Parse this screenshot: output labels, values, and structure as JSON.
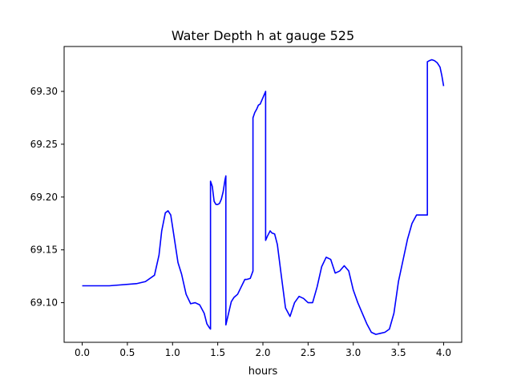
{
  "chart_data": {
    "type": "line",
    "title": "Water Depth h at gauge 525",
    "xlabel": "hours",
    "ylabel": "",
    "xlim": [
      -0.2,
      4.2
    ],
    "ylim": [
      69.0625,
      69.3425
    ],
    "xticks": [
      0.0,
      0.5,
      1.0,
      1.5,
      2.0,
      2.5,
      3.0,
      3.5,
      4.0
    ],
    "xtick_labels": [
      "0.0",
      "0.5",
      "1.0",
      "1.5",
      "2.0",
      "2.5",
      "3.0",
      "3.5",
      "4.0"
    ],
    "yticks": [
      69.1,
      69.15,
      69.2,
      69.25,
      69.3
    ],
    "ytick_labels": [
      "69.10",
      "69.15",
      "69.20",
      "69.25",
      "69.30"
    ],
    "grid": false,
    "series": [
      {
        "color": "#0000ff",
        "x": [
          0.0,
          0.3,
          0.6,
          0.7,
          0.8,
          0.85,
          0.88,
          0.92,
          0.95,
          0.98,
          1.0,
          1.03,
          1.06,
          1.1,
          1.15,
          1.2,
          1.25,
          1.3,
          1.35,
          1.38,
          1.41,
          1.42,
          1.42,
          1.44,
          1.46,
          1.48,
          1.5,
          1.52,
          1.54,
          1.56,
          1.58,
          1.59,
          1.59,
          1.62,
          1.65,
          1.68,
          1.72,
          1.76,
          1.8,
          1.82,
          1.86,
          1.89,
          1.89,
          1.91,
          1.93,
          1.95,
          1.97,
          1.99,
          2.01,
          2.03,
          2.03,
          2.05,
          2.08,
          2.1,
          2.13,
          2.16,
          2.2,
          2.25,
          2.3,
          2.35,
          2.4,
          2.45,
          2.5,
          2.55,
          2.6,
          2.65,
          2.7,
          2.75,
          2.8,
          2.85,
          2.9,
          2.95,
          3.0,
          3.05,
          3.1,
          3.15,
          3.2,
          3.25,
          3.3,
          3.35,
          3.4,
          3.45,
          3.5,
          3.55,
          3.6,
          3.65,
          3.7,
          3.75,
          3.8,
          3.82,
          3.82,
          3.84,
          3.87,
          3.9,
          3.93,
          3.96,
          3.98,
          4.0
        ],
        "values": [
          69.116,
          69.116,
          69.118,
          69.12,
          69.126,
          69.145,
          69.168,
          69.185,
          69.187,
          69.183,
          69.172,
          69.155,
          69.138,
          69.127,
          69.108,
          69.099,
          69.1,
          69.098,
          69.09,
          69.08,
          69.076,
          69.075,
          69.215,
          69.21,
          69.196,
          69.193,
          69.193,
          69.194,
          69.198,
          69.205,
          69.216,
          69.22,
          69.079,
          69.09,
          69.101,
          69.105,
          69.108,
          69.115,
          69.122,
          69.122,
          69.123,
          69.13,
          69.275,
          69.28,
          69.283,
          69.287,
          69.288,
          69.292,
          69.296,
          69.3,
          69.159,
          69.163,
          69.168,
          69.166,
          69.165,
          69.155,
          69.128,
          69.095,
          69.087,
          69.1,
          69.106,
          69.104,
          69.1,
          69.1,
          69.115,
          69.134,
          69.143,
          69.141,
          69.128,
          69.13,
          69.135,
          69.13,
          69.112,
          69.1,
          69.09,
          69.08,
          69.072,
          69.07,
          69.071,
          69.072,
          69.075,
          69.09,
          69.12,
          69.14,
          69.16,
          69.175,
          69.183,
          69.183,
          69.183,
          69.183,
          69.328,
          69.329,
          69.33,
          69.329,
          69.327,
          69.323,
          69.315,
          69.305
        ]
      }
    ]
  }
}
